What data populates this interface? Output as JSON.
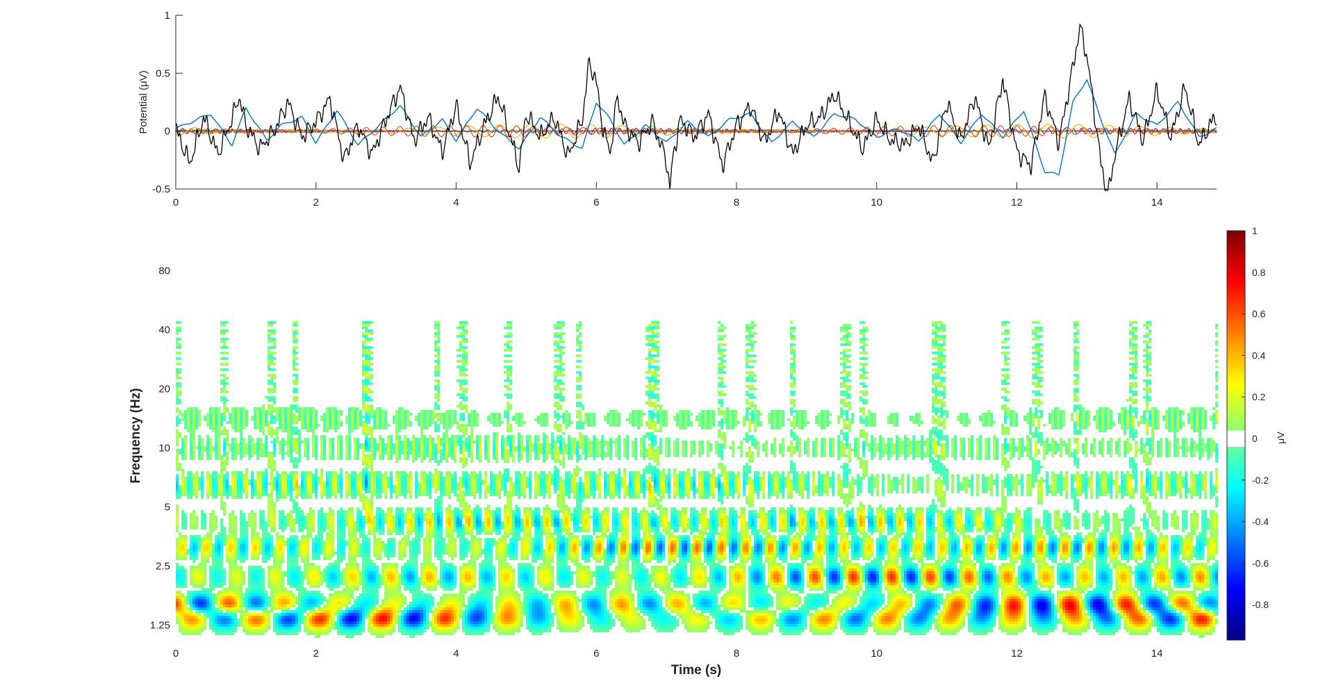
{
  "chart_data": [
    {
      "type": "line",
      "xlabel": "",
      "ylabel": "Potential (μV)",
      "xlim": [
        0,
        14.85
      ],
      "ylim": [
        -0.5,
        1
      ],
      "xticks": [
        "0",
        "2",
        "4",
        "6",
        "8",
        "10",
        "12",
        "14"
      ],
      "yticks": [
        "-0.5",
        "0",
        "0.5",
        "1"
      ],
      "grid": false,
      "legend": "none",
      "series": [
        {
          "color": "#000000",
          "x": [
            0,
            0.2,
            0.4,
            0.6,
            0.8,
            0.9,
            1.0,
            1.2,
            1.4,
            1.6,
            1.8,
            2.0,
            2.2,
            2.4,
            2.6,
            2.8,
            3.0,
            3.2,
            3.4,
            3.6,
            3.8,
            4.0,
            4.2,
            4.4,
            4.6,
            4.8,
            4.9,
            5.0,
            5.2,
            5.4,
            5.6,
            5.8,
            5.9,
            6.0,
            6.1,
            6.2,
            6.3,
            6.4,
            6.6,
            6.8,
            7.0,
            7.05,
            7.1,
            7.2,
            7.4,
            7.6,
            7.8,
            8.0,
            8.2,
            8.4,
            8.6,
            8.8,
            9.0,
            9.2,
            9.4,
            9.6,
            9.8,
            10.0,
            10.2,
            10.4,
            10.6,
            10.8,
            11.0,
            11.2,
            11.4,
            11.6,
            11.8,
            12.0,
            12.2,
            12.4,
            12.6,
            12.8,
            12.9,
            13.0,
            13.1,
            13.2,
            13.3,
            13.4,
            13.6,
            13.8,
            14.0,
            14.2,
            14.4,
            14.6,
            14.8
          ],
          "y": [
            0.02,
            -0.28,
            0.12,
            -0.2,
            0.1,
            0.3,
            0.05,
            -0.15,
            0.0,
            0.25,
            -0.05,
            0.08,
            0.28,
            -0.25,
            0.05,
            -0.2,
            0.1,
            0.38,
            -0.08,
            0.12,
            -0.18,
            0.22,
            -0.28,
            0.05,
            0.3,
            -0.1,
            -0.32,
            0.15,
            -0.05,
            0.12,
            -0.22,
            0.1,
            0.6,
            0.42,
            0.0,
            -0.18,
            0.3,
            0.05,
            -0.1,
            0.08,
            -0.25,
            -0.5,
            -0.2,
            0.1,
            -0.05,
            0.15,
            -0.3,
            0.05,
            0.22,
            -0.1,
            0.18,
            -0.2,
            0.05,
            0.12,
            0.32,
            0.08,
            -0.15,
            0.1,
            -0.08,
            -0.12,
            0.05,
            -0.28,
            0.25,
            -0.08,
            0.3,
            -0.15,
            0.45,
            -0.18,
            -0.3,
            0.3,
            -0.1,
            0.55,
            0.9,
            0.65,
            0.2,
            -0.28,
            -0.55,
            -0.2,
            0.28,
            -0.08,
            0.35,
            -0.05,
            0.38,
            -0.12,
            0.1
          ]
        },
        {
          "color": "#0072BD",
          "x": [
            0,
            0.3,
            0.5,
            0.8,
            1.0,
            1.3,
            1.5,
            1.8,
            2.0,
            2.3,
            2.6,
            2.9,
            3.2,
            3.5,
            3.8,
            4.0,
            4.3,
            4.6,
            4.9,
            5.2,
            5.5,
            5.8,
            6.0,
            6.2,
            6.4,
            6.7,
            7.0,
            7.3,
            7.6,
            7.9,
            8.2,
            8.5,
            8.8,
            9.1,
            9.4,
            9.7,
            10.0,
            10.3,
            10.6,
            10.9,
            11.2,
            11.5,
            11.8,
            12.1,
            12.4,
            12.6,
            12.8,
            13.0,
            13.2,
            13.4,
            13.7,
            14.0,
            14.3,
            14.6,
            14.85
          ],
          "y": [
            0.02,
            0.1,
            0.15,
            -0.12,
            0.2,
            -0.08,
            0.05,
            0.12,
            -0.1,
            0.18,
            -0.12,
            0.05,
            0.22,
            -0.05,
            0.1,
            -0.08,
            0.2,
            0.0,
            -0.15,
            0.12,
            -0.05,
            -0.15,
            0.25,
            0.1,
            -0.12,
            0.05,
            -0.1,
            0.08,
            -0.05,
            0.1,
            0.15,
            -0.1,
            0.08,
            -0.05,
            0.15,
            0.1,
            -0.05,
            0.02,
            -0.08,
            0.15,
            -0.1,
            0.15,
            -0.05,
            0.18,
            -0.35,
            -0.38,
            0.25,
            0.45,
            0.1,
            -0.2,
            0.15,
            0.05,
            0.25,
            -0.05,
            0.02
          ]
        },
        {
          "color": "#D95319",
          "amplitude": 0.05,
          "frequency_hz": 4.2
        },
        {
          "color": "#EDB120",
          "amplitude": 0.06,
          "frequency_hz": 2.3
        },
        {
          "color": "#7E2F8E",
          "amplitude": 0.025,
          "frequency_hz": 8.5
        },
        {
          "color": "#77AC30",
          "amplitude": 0.015,
          "frequency_hz": 15
        },
        {
          "color": "#A2142F",
          "amplitude": 0.01,
          "frequency_hz": 30
        }
      ]
    },
    {
      "type": "heatmap",
      "xlabel": "Time (s)",
      "ylabel": "Frequency (Hz)",
      "xlim": [
        0,
        14.85
      ],
      "ylim_hz": [
        1.05,
        130
      ],
      "xticks": [
        "0",
        "2",
        "4",
        "6",
        "8",
        "10",
        "12",
        "14"
      ],
      "yticks_values": [
        1.25,
        2.5,
        5,
        10,
        20,
        40,
        80
      ],
      "yticks": [
        "1.25",
        "2.5",
        "5",
        "10",
        "20",
        "40",
        "80"
      ],
      "yscale": "log2",
      "colormap": "jet",
      "zero_band_white": true,
      "bands": [
        {
          "freq_hz": 1.35,
          "amplitude": 0.85,
          "stripe_period_s": 0.9
        },
        {
          "freq_hz": 1.6,
          "amplitude": 0.75,
          "stripe_period_s": 0.8
        },
        {
          "freq_hz": 2.2,
          "amplitude": 0.7,
          "stripe_period_s": 0.55
        },
        {
          "freq_hz": 3.1,
          "amplitude": 0.6,
          "stripe_period_s": 0.35
        },
        {
          "freq_hz": 4.2,
          "amplitude": 0.45,
          "stripe_period_s": 0.28
        },
        {
          "freq_hz": 6.5,
          "amplitude": 0.35,
          "stripe_period_s": 0.18
        },
        {
          "freq_hz": 10,
          "amplitude": 0.25,
          "stripe_period_s": 0.12
        },
        {
          "freq_hz": 14,
          "amplitude": 0.18,
          "stripe_period_s": 0.09
        }
      ],
      "colorbar": {
        "label": "μV",
        "range": [
          -0.97,
          1
        ],
        "ticks": [
          "1",
          "0.8",
          "0.6",
          "0.4",
          "0.2",
          "0",
          "-0.2",
          "-0.4",
          "-0.6",
          "-0.8"
        ],
        "tick_values": [
          1,
          0.8,
          0.6,
          0.4,
          0.2,
          0,
          -0.2,
          -0.4,
          -0.6,
          -0.8
        ]
      }
    }
  ]
}
